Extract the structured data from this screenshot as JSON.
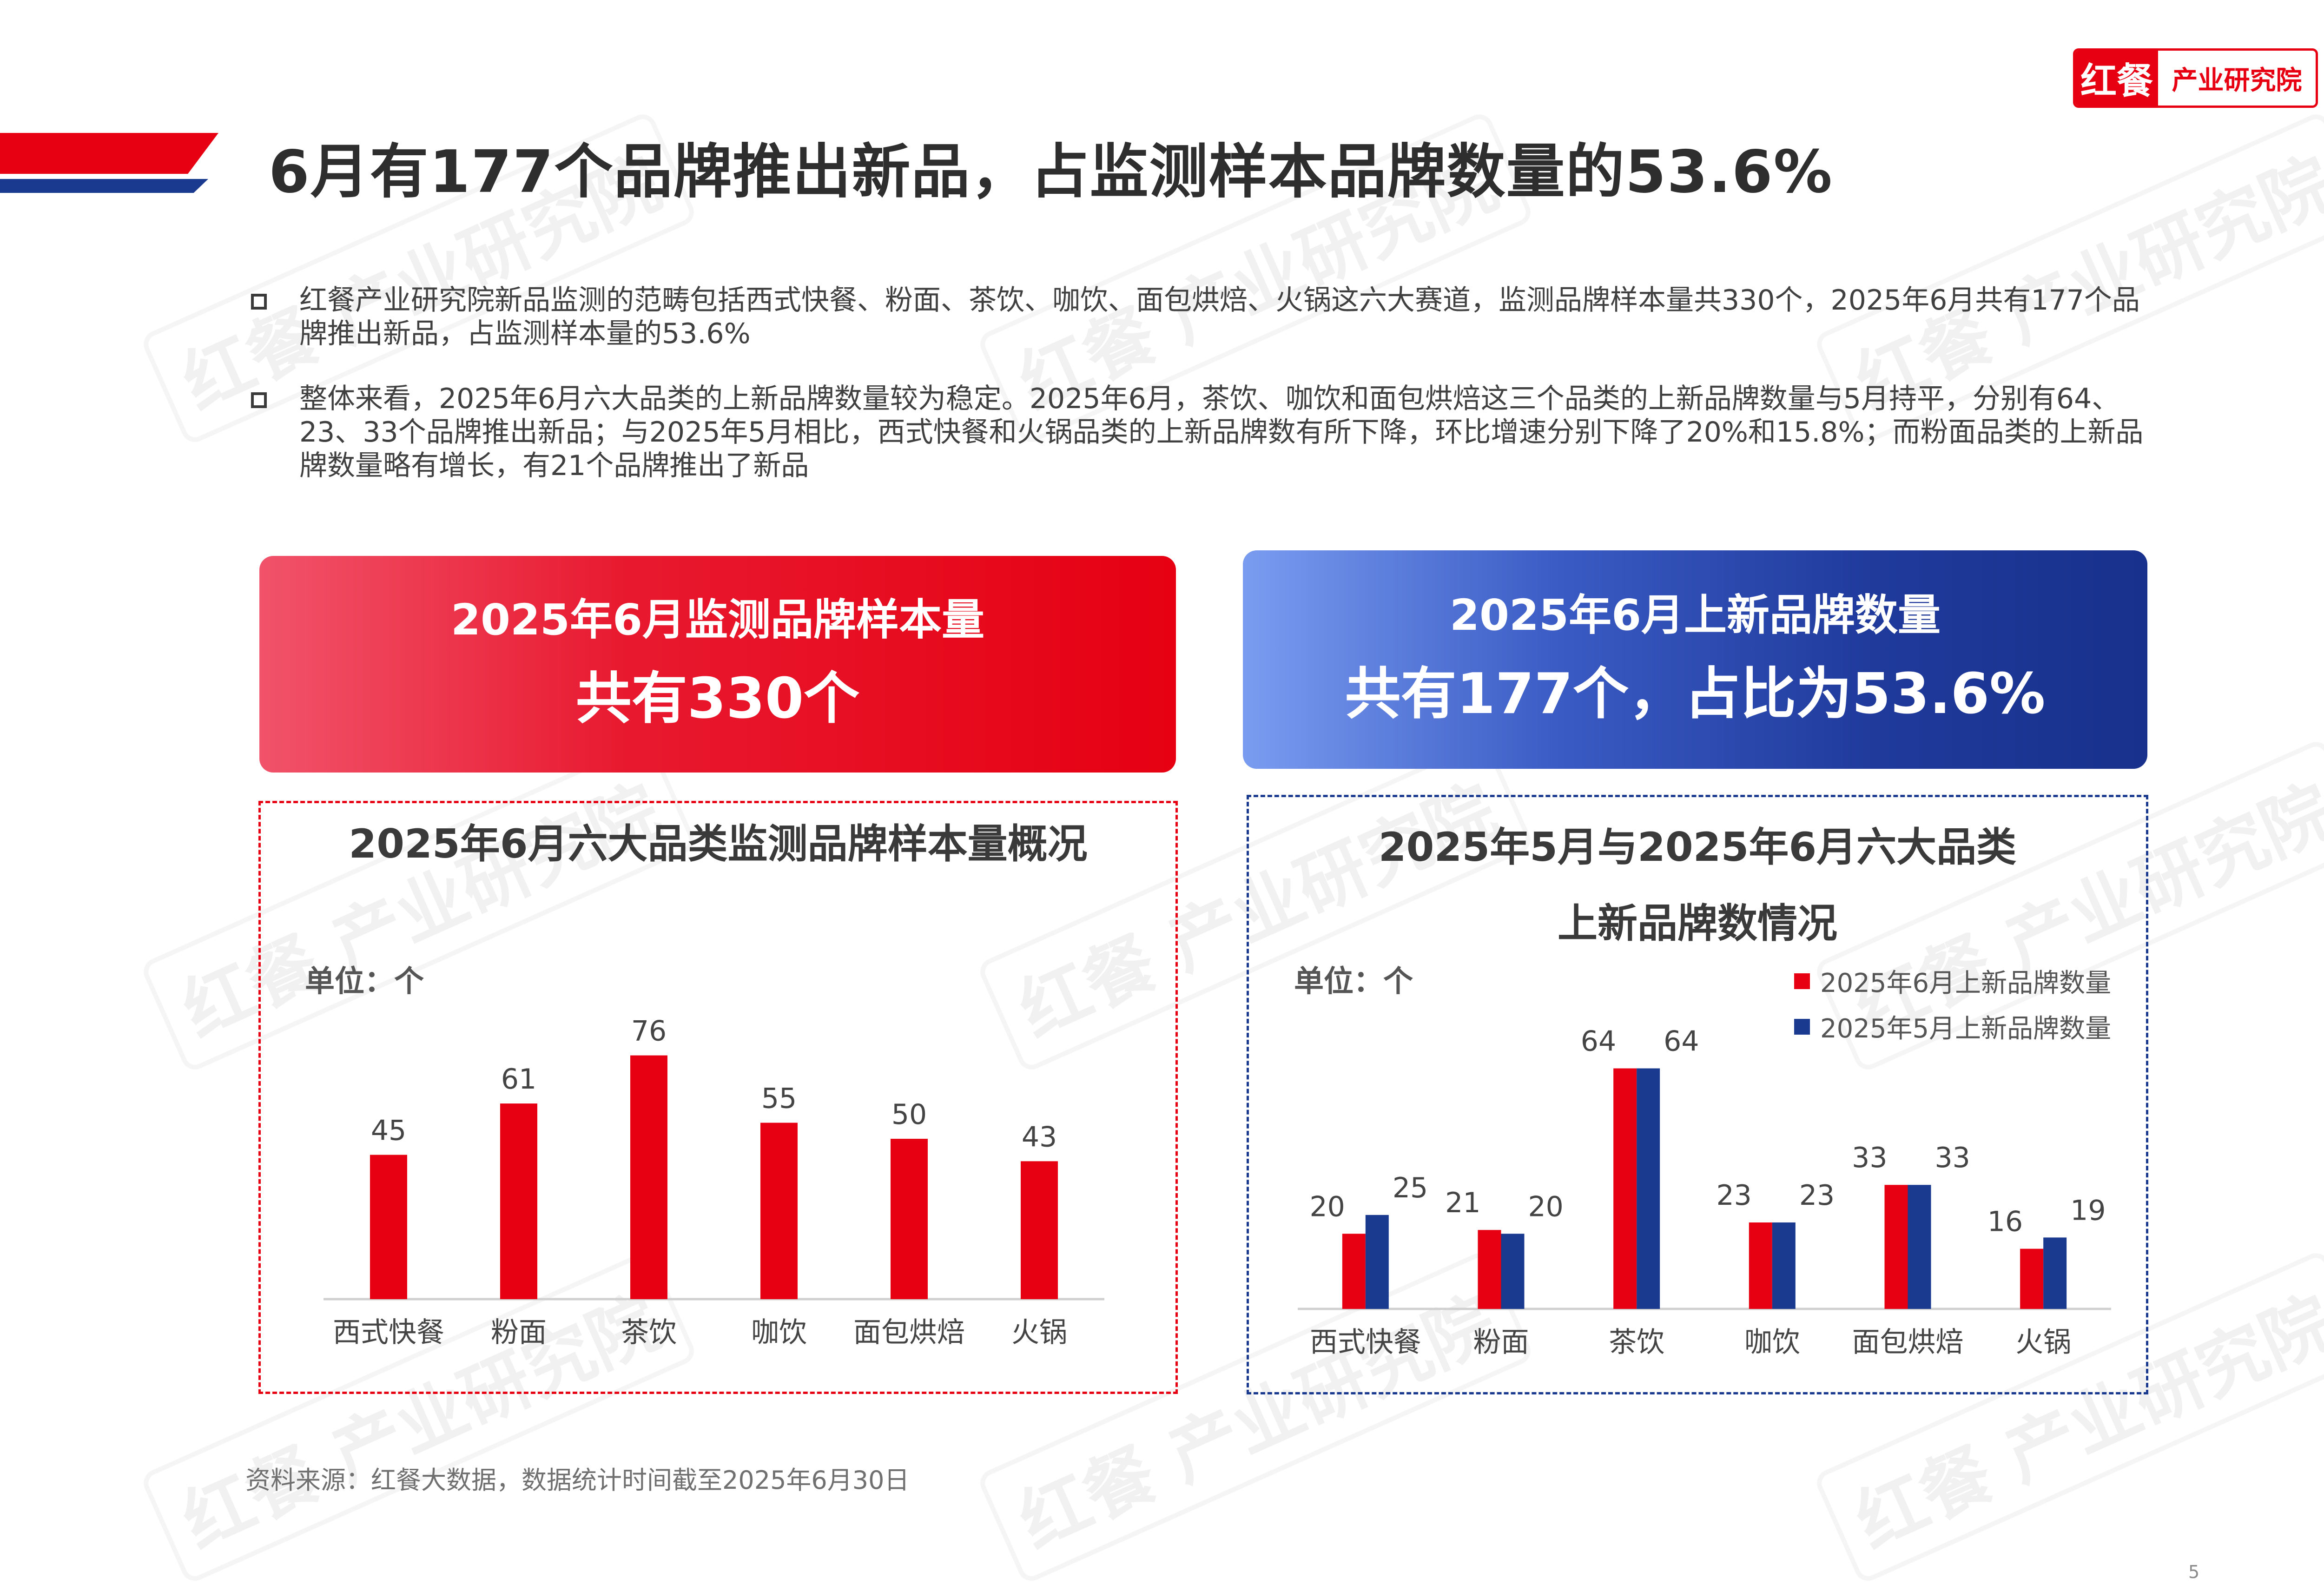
{
  "logo": {
    "brand": "红餐",
    "institute": "产业研究院"
  },
  "watermark": "红餐 产业研究院",
  "page_title": "6月有177个品牌推出新品，占监测样本品牌数量的53.6%",
  "bullets": [
    "红餐产业研究院新品监测的范畴包括西式快餐、粉面、茶饮、咖饮、面包烘焙、火锅这六大赛道，监测品牌样本量共330个，2025年6月共有177个品牌推出新品，占监测样本量的53.6%",
    "整体来看，2025年6月六大品类的上新品牌数量较为稳定。2025年6月，茶饮、咖饮和面包烘焙这三个品类的上新品牌数量与5月持平，分别有64、23、33个品牌推出新品；与2025年5月相比，西式快餐和火锅品类的上新品牌数有所下降，环比增速分别下降了20%和15.8%；而粉面品类的上新品牌数量略有增长，有21个品牌推出了新品"
  ],
  "banner_left": {
    "line1": "2025年6月监测品牌样本量",
    "line2": "共有330个"
  },
  "banner_right": {
    "line1": "2025年6月上新品牌数量",
    "line2": "共有177个，占比为53.6%"
  },
  "colors": {
    "red": "#e60012",
    "blue": "#1a3a8f"
  },
  "chart_data": [
    {
      "type": "bar",
      "title": "2025年6月六大品类监测品牌样本量概况",
      "unit_label": "单位：个",
      "categories": [
        "西式快餐",
        "粉面",
        "茶饮",
        "咖饮",
        "面包烘焙",
        "火锅"
      ],
      "values": [
        45,
        61,
        76,
        55,
        50,
        43
      ],
      "ylim": [
        0,
        80
      ],
      "grid": false,
      "color": "#e60012"
    },
    {
      "type": "bar",
      "title_line1": "2025年5月与2025年6月六大品类",
      "title_line2": "上新品牌数情况",
      "unit_label": "单位：个",
      "categories": [
        "西式快餐",
        "粉面",
        "茶饮",
        "咖饮",
        "面包烘焙",
        "火锅"
      ],
      "series": [
        {
          "name": "2025年6月上新品牌数量",
          "values": [
            20,
            21,
            64,
            23,
            33,
            16
          ],
          "color": "#e60012"
        },
        {
          "name": "2025年5月上新品牌数量",
          "values": [
            25,
            20,
            64,
            23,
            33,
            19
          ],
          "color": "#1a3a8f"
        }
      ],
      "ylim": [
        0,
        70
      ],
      "grid": false,
      "legend": "top-right"
    }
  ],
  "source": "资料来源：红餐大数据，数据统计时间截至2025年6月30日",
  "page_number": "5"
}
